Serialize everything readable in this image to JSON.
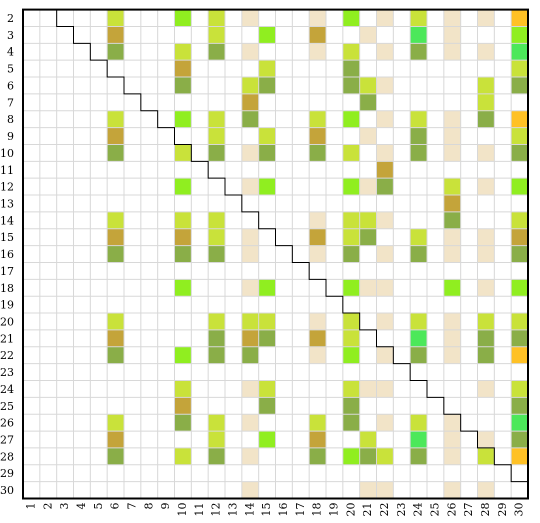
{
  "chart_data": {
    "type": "matrix",
    "rows": [
      2,
      3,
      4,
      5,
      6,
      7,
      8,
      9,
      10,
      11,
      12,
      13,
      14,
      15,
      16,
      17,
      18,
      19,
      20,
      21,
      22,
      23,
      24,
      25,
      26,
      27,
      28,
      29,
      30
    ],
    "columns": [
      1,
      2,
      3,
      4,
      5,
      6,
      7,
      8,
      9,
      10,
      11,
      12,
      13,
      14,
      15,
      16,
      17,
      18,
      19,
      20,
      21,
      22,
      23,
      24,
      25,
      26,
      27,
      28,
      29,
      30
    ],
    "cells": [
      {
        "row": 2,
        "cols": [
          6,
          10,
          12,
          14,
          18,
          20,
          22,
          24,
          26,
          28,
          30
        ],
        "colors": [
          "#c9e23a",
          "#90ee20",
          "#c9e23a",
          "#f2e4c8",
          "#f2e4c8",
          "#90ee20",
          "#f2e4c8",
          "#c9e23a",
          "#f2e4c8",
          "#f2e4c8",
          "#ffc125"
        ]
      },
      {
        "row": 3,
        "cols": [
          6,
          12,
          15,
          18,
          21,
          24,
          26,
          30
        ],
        "colors": [
          "#c4a43a",
          "#c9e23a",
          "#90ee20",
          "#c4a43a",
          "#f2e4c8",
          "#4ce85a",
          "#f2e4c8",
          "#90ee20"
        ]
      },
      {
        "row": 4,
        "cols": [
          6,
          10,
          12,
          14,
          18,
          20,
          22,
          24,
          26,
          28,
          30
        ],
        "colors": [
          "#8aae48",
          "#c9e23a",
          "#8aae48",
          "#f2e4c8",
          "#f2e4c8",
          "#c9e23a",
          "#f2e4c8",
          "#8aae48",
          "#f2e4c8",
          "#f2e4c8",
          "#4ce85a"
        ]
      },
      {
        "row": 5,
        "cols": [
          10,
          15,
          20,
          30
        ],
        "colors": [
          "#c4a43a",
          "#c9e23a",
          "#8aae48",
          "#c9e23a"
        ]
      },
      {
        "row": 6,
        "cols": [
          10,
          14,
          15,
          20,
          21,
          22,
          28,
          30
        ],
        "colors": [
          "#8aae48",
          "#c9e23a",
          "#8aae48",
          "#8aae48",
          "#c9e23a",
          "#f2e4c8",
          "#c9e23a",
          "#8aae48"
        ]
      },
      {
        "row": 7,
        "cols": [
          14,
          21,
          28
        ],
        "colors": [
          "#c4a43a",
          "#8aae48",
          "#c9e23a"
        ]
      },
      {
        "row": 8,
        "cols": [
          6,
          10,
          12,
          14,
          18,
          20,
          22,
          24,
          26,
          28,
          30
        ],
        "colors": [
          "#c9e23a",
          "#90ee20",
          "#c9e23a",
          "#8aae48",
          "#c9e23a",
          "#90ee20",
          "#f2e4c8",
          "#c9e23a",
          "#f2e4c8",
          "#8aae48",
          "#ffc125"
        ]
      },
      {
        "row": 9,
        "cols": [
          6,
          12,
          15,
          18,
          21,
          24,
          26,
          30
        ],
        "colors": [
          "#c4a43a",
          "#c9e23a",
          "#c9e23a",
          "#c4a43a",
          "#f2e4c8",
          "#8aae48",
          "#f2e4c8",
          "#c9e23a"
        ]
      },
      {
        "row": 10,
        "cols": [
          6,
          10,
          12,
          14,
          15,
          18,
          20,
          22,
          24,
          26,
          28,
          30
        ],
        "colors": [
          "#8aae48",
          "#c9e23a",
          "#8aae48",
          "#f2e4c8",
          "#8aae48",
          "#8aae48",
          "#c9e23a",
          "#f2e4c8",
          "#8aae48",
          "#f2e4c8",
          "#f2e4c8",
          "#8aae48"
        ]
      },
      {
        "row": 11,
        "cols": [
          22
        ],
        "colors": [
          "#c4a43a"
        ]
      },
      {
        "row": 12,
        "cols": [
          10,
          14,
          15,
          20,
          21,
          22,
          26,
          28,
          30
        ],
        "colors": [
          "#90ee20",
          "#f2e4c8",
          "#90ee20",
          "#90ee20",
          "#f2e4c8",
          "#8aae48",
          "#c9e23a",
          "#f2e4c8",
          "#90ee20"
        ]
      },
      {
        "row": 13,
        "cols": [
          26
        ],
        "colors": [
          "#c4a43a"
        ]
      },
      {
        "row": 14,
        "cols": [
          6,
          10,
          12,
          18,
          20,
          21,
          22,
          26,
          30
        ],
        "colors": [
          "#c9e23a",
          "#c9e23a",
          "#c9e23a",
          "#f2e4c8",
          "#c9e23a",
          "#c9e23a",
          "#f2e4c8",
          "#8aae48",
          "#c9e23a"
        ]
      },
      {
        "row": 15,
        "cols": [
          6,
          10,
          12,
          14,
          18,
          20,
          21,
          24,
          26,
          28,
          30
        ],
        "colors": [
          "#c4a43a",
          "#c4a43a",
          "#c9e23a",
          "#f2e4c8",
          "#c4a43a",
          "#c9e23a",
          "#8aae48",
          "#c9e23a",
          "#f2e4c8",
          "#f2e4c8",
          "#c4a43a"
        ]
      },
      {
        "row": 16,
        "cols": [
          6,
          10,
          12,
          14,
          18,
          20,
          22,
          24,
          26,
          28,
          30
        ],
        "colors": [
          "#8aae48",
          "#8aae48",
          "#8aae48",
          "#f2e4c8",
          "#f2e4c8",
          "#8aae48",
          "#f2e4c8",
          "#8aae48",
          "#f2e4c8",
          "#f2e4c8",
          "#8aae48"
        ]
      },
      {
        "row": 18,
        "cols": [
          10,
          14,
          15,
          20,
          21,
          22,
          26,
          28,
          30
        ],
        "colors": [
          "#90ee20",
          "#f2e4c8",
          "#90ee20",
          "#90ee20",
          "#f2e4c8",
          "#f2e4c8",
          "#90ee20",
          "#f2e4c8",
          "#90ee20"
        ]
      },
      {
        "row": 20,
        "cols": [
          6,
          12,
          14,
          15,
          18,
          20,
          22,
          24,
          26,
          28,
          30
        ],
        "colors": [
          "#c9e23a",
          "#c9e23a",
          "#c9e23a",
          "#c9e23a",
          "#f2e4c8",
          "#c9e23a",
          "#f2e4c8",
          "#c9e23a",
          "#f2e4c8",
          "#c9e23a",
          "#c9e23a"
        ]
      },
      {
        "row": 21,
        "cols": [
          6,
          12,
          14,
          15,
          18,
          20,
          24,
          26,
          28,
          30
        ],
        "colors": [
          "#c4a43a",
          "#8aae48",
          "#c4a43a",
          "#8aae48",
          "#c4a43a",
          "#c9e23a",
          "#4ce85a",
          "#f2e4c8",
          "#8aae48",
          "#8aae48"
        ]
      },
      {
        "row": 22,
        "cols": [
          6,
          10,
          12,
          14,
          18,
          20,
          22,
          24,
          26,
          28,
          30
        ],
        "colors": [
          "#8aae48",
          "#90ee20",
          "#8aae48",
          "#8aae48",
          "#f2e4c8",
          "#90ee20",
          "#f2e4c8",
          "#8aae48",
          "#f2e4c8",
          "#8aae48",
          "#ffc125"
        ]
      },
      {
        "row": 24,
        "cols": [
          10,
          14,
          15,
          20,
          21,
          22,
          28,
          30
        ],
        "colors": [
          "#c9e23a",
          "#f2e4c8",
          "#c9e23a",
          "#c9e23a",
          "#f2e4c8",
          "#f2e4c8",
          "#f2e4c8",
          "#c9e23a"
        ]
      },
      {
        "row": 25,
        "cols": [
          10,
          15,
          20,
          30
        ],
        "colors": [
          "#c4a43a",
          "#8aae48",
          "#8aae48",
          "#8aae48"
        ]
      },
      {
        "row": 26,
        "cols": [
          6,
          10,
          12,
          14,
          18,
          20,
          22,
          24,
          26,
          30
        ],
        "colors": [
          "#c9e23a",
          "#8aae48",
          "#c9e23a",
          "#f2e4c8",
          "#c9e23a",
          "#8aae48",
          "#f2e4c8",
          "#c9e23a",
          "#f2e4c8",
          "#4ce85a"
        ]
      },
      {
        "row": 27,
        "cols": [
          6,
          12,
          15,
          18,
          21,
          24,
          26,
          28,
          30
        ],
        "colors": [
          "#c4a43a",
          "#c9e23a",
          "#90ee20",
          "#c4a43a",
          "#c9e23a",
          "#4ce85a",
          "#f2e4c8",
          "#f2e4c8",
          "#8aae48"
        ]
      },
      {
        "row": 28,
        "cols": [
          6,
          10,
          12,
          14,
          18,
          20,
          21,
          22,
          24,
          26,
          28,
          30
        ],
        "colors": [
          "#8aae48",
          "#c9e23a",
          "#8aae48",
          "#f2e4c8",
          "#8aae48",
          "#90ee20",
          "#8aae48",
          "#c9e23a",
          "#8aae48",
          "#f2e4c8",
          "#c9e23a",
          "#ffc125"
        ]
      },
      {
        "row": 30,
        "cols": [
          14,
          21,
          22,
          26,
          28
        ],
        "colors": [
          "#f2e4c8",
          "#f2e4c8",
          "#f2e4c8",
          "#f2e4c8",
          "#f2e4c8"
        ]
      }
    ]
  }
}
